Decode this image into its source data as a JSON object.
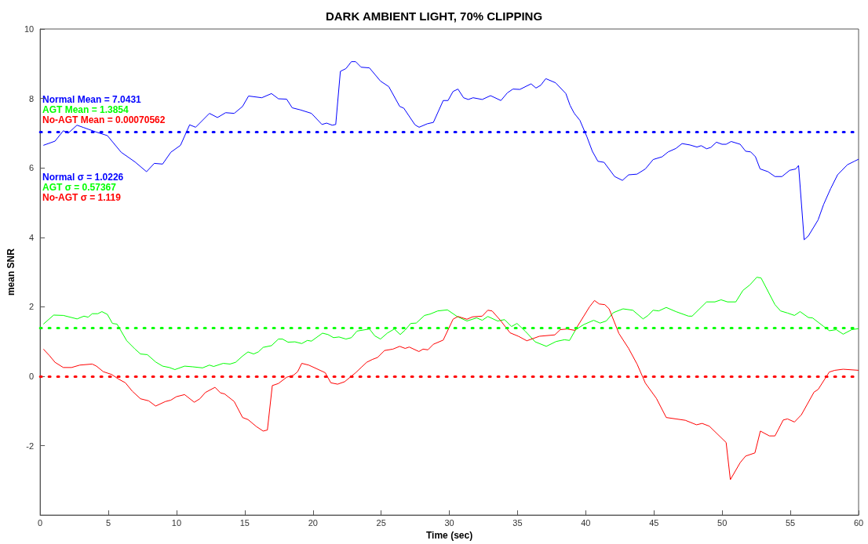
{
  "chart_data": {
    "type": "line",
    "title": "DARK AMBIENT LIGHT, 70% CLIPPING",
    "xlabel": "Time (sec)",
    "ylabel": "mean SNR",
    "xlim": [
      0,
      60
    ],
    "xticks": [
      0,
      5,
      10,
      15,
      20,
      25,
      30,
      35,
      40,
      45,
      50,
      55,
      60
    ],
    "ylim": [
      -4,
      10
    ],
    "yticks": [
      -2,
      0,
      2,
      4,
      6,
      8,
      10
    ],
    "grid": false,
    "marker": "none",
    "line_style": "solid",
    "annotations": [
      "Normal Mean = 7.0431",
      "AGT Mean = 1.3854",
      "No-AGT Mean = 0.00070562",
      "Normal σ = 1.0226",
      "AGT σ = 0.57367",
      "No-AGT σ = 1.119"
    ],
    "ref_lines": [
      {
        "axis": "y",
        "value": 7.0431,
        "color": "#0000ff",
        "line_style": "dotted"
      },
      {
        "axis": "y",
        "value": 1.3854,
        "color": "#00ff00",
        "line_style": "dotted"
      },
      {
        "axis": "y",
        "value": 0.00070562,
        "color": "#ff0000",
        "line_style": "dotted"
      }
    ],
    "series": [
      {
        "color": "#0000ff",
        "x": [
          0.24,
          1.09,
          1.7,
          2.06,
          2.7,
          3.2,
          4.13,
          4.93,
          5.94,
          6.96,
          7.8,
          8.37,
          8.98,
          9.58,
          10.29,
          10.96,
          11.4,
          12.41,
          13.0,
          13.6,
          14.23,
          14.84,
          15.28,
          16.25,
          16.96,
          17.47,
          18.07,
          18.48,
          19.08,
          19.89,
          20.66,
          21.0,
          21.41,
          21.67,
          22.01,
          22.42,
          22.82,
          23.13,
          23.53,
          24.14,
          24.95,
          25.56,
          26.36,
          26.66,
          27.48,
          27.78,
          28.38,
          28.83,
          29.55,
          29.9,
          30.27,
          30.63,
          31.04,
          31.39,
          31.74,
          32.41,
          33.02,
          33.78,
          34.25,
          34.66,
          35.17,
          35.99,
          36.35,
          36.7,
          37.07,
          37.79,
          38.54,
          38.85,
          39.16,
          39.57,
          40.08,
          40.48,
          40.89,
          41.34,
          42.12,
          42.69,
          43.14,
          43.76,
          44.37,
          44.94,
          45.6,
          46.04,
          46.61,
          47.06,
          47.64,
          48.15,
          48.46,
          48.86,
          49.17,
          49.58,
          49.99,
          50.29,
          50.66,
          51.32,
          51.72,
          52.09,
          52.44,
          52.78,
          53.36,
          53.87,
          54.38,
          54.95,
          55.4,
          55.6,
          56.01,
          56.32,
          57.03,
          57.44,
          57.95,
          58.46,
          59.18,
          59.69,
          60
        ],
        "values": [
          6.65,
          6.77,
          7.07,
          7.0,
          7.23,
          7.16,
          7.03,
          6.93,
          6.45,
          6.17,
          5.89,
          6.13,
          6.11,
          6.45,
          6.65,
          7.24,
          7.17,
          7.57,
          7.45,
          7.59,
          7.57,
          7.77,
          8.07,
          8.02,
          8.14,
          7.99,
          7.98,
          7.73,
          7.67,
          7.57,
          7.25,
          7.29,
          7.23,
          7.25,
          8.78,
          8.86,
          9.06,
          9.06,
          8.9,
          8.88,
          8.5,
          8.34,
          7.77,
          7.72,
          7.24,
          7.17,
          7.27,
          7.31,
          7.94,
          7.94,
          8.2,
          8.27,
          8.02,
          7.97,
          8.02,
          7.97,
          8.08,
          7.94,
          8.16,
          8.27,
          8.26,
          8.42,
          8.3,
          8.38,
          8.57,
          8.45,
          8.14,
          7.8,
          7.57,
          7.37,
          6.9,
          6.48,
          6.19,
          6.16,
          5.75,
          5.64,
          5.8,
          5.82,
          5.97,
          6.24,
          6.32,
          6.46,
          6.56,
          6.7,
          6.66,
          6.6,
          6.64,
          6.55,
          6.59,
          6.74,
          6.68,
          6.68,
          6.76,
          6.68,
          6.48,
          6.46,
          6.32,
          5.97,
          5.89,
          5.75,
          5.75,
          5.93,
          5.97,
          6.07,
          3.93,
          4.04,
          4.5,
          4.95,
          5.4,
          5.8,
          6.09,
          6.19,
          6.25
        ]
      },
      {
        "color": "#00ff00",
        "x": [
          0.24,
          0.99,
          1.7,
          2.71,
          3.21,
          3.52,
          3.82,
          4.23,
          4.53,
          4.93,
          5.3,
          5.64,
          6.35,
          6.96,
          7.36,
          7.86,
          8.47,
          8.98,
          9.48,
          9.88,
          10.59,
          11.2,
          11.91,
          12.41,
          12.72,
          13.42,
          13.92,
          14.33,
          14.84,
          15.24,
          15.65,
          16.0,
          16.35,
          16.96,
          17.47,
          17.77,
          18.17,
          18.68,
          19.18,
          19.59,
          19.89,
          20.7,
          21.1,
          21.51,
          21.91,
          22.42,
          22.82,
          23.23,
          24.14,
          24.54,
          24.95,
          25.45,
          25.96,
          26.4,
          26.76,
          27.17,
          27.57,
          28.18,
          28.59,
          29.15,
          29.86,
          30.57,
          31.29,
          32.0,
          32.41,
          32.82,
          33.54,
          34.05,
          34.56,
          34.96,
          35.58,
          36.29,
          37.11,
          37.83,
          38.44,
          38.81,
          39.26,
          39.87,
          40.58,
          41.05,
          41.5,
          42.02,
          42.73,
          43.45,
          44.2,
          44.57,
          44.94,
          45.35,
          45.9,
          46.61,
          47.53,
          47.8,
          48.86,
          49.47,
          49.92,
          50.39,
          51.0,
          51.52,
          52.03,
          52.54,
          52.85,
          53.87,
          54.28,
          54.79,
          55.3,
          55.71,
          56.32,
          56.62,
          57.45,
          57.86,
          58.37,
          58.87,
          59.49,
          60
        ],
        "values": [
          1.5,
          1.76,
          1.75,
          1.65,
          1.73,
          1.7,
          1.8,
          1.8,
          1.86,
          1.78,
          1.52,
          1.5,
          1.02,
          0.78,
          0.64,
          0.62,
          0.41,
          0.29,
          0.25,
          0.19,
          0.29,
          0.27,
          0.24,
          0.32,
          0.28,
          0.37,
          0.35,
          0.4,
          0.58,
          0.7,
          0.64,
          0.7,
          0.83,
          0.88,
          1.07,
          1.07,
          0.98,
          0.99,
          0.94,
          1.03,
          1.01,
          1.24,
          1.2,
          1.11,
          1.13,
          1.07,
          1.11,
          1.3,
          1.36,
          1.16,
          1.07,
          1.24,
          1.36,
          1.2,
          1.33,
          1.52,
          1.53,
          1.75,
          1.79,
          1.88,
          1.91,
          1.72,
          1.59,
          1.68,
          1.61,
          1.72,
          1.59,
          1.63,
          1.43,
          1.52,
          1.29,
          0.99,
          0.86,
          1.0,
          1.05,
          1.03,
          1.34,
          1.49,
          1.61,
          1.53,
          1.59,
          1.83,
          1.94,
          1.9,
          1.65,
          1.75,
          1.9,
          1.88,
          1.98,
          1.86,
          1.73,
          1.73,
          2.14,
          2.14,
          2.2,
          2.14,
          2.14,
          2.47,
          2.63,
          2.85,
          2.83,
          2.06,
          1.88,
          1.82,
          1.75,
          1.86,
          1.69,
          1.68,
          1.43,
          1.31,
          1.34,
          1.21,
          1.34,
          1.37
        ]
      },
      {
        "color": "#ff0000",
        "x": [
          0.24,
          0.69,
          1.09,
          1.7,
          2.3,
          2.91,
          3.82,
          4.13,
          4.63,
          5.24,
          5.74,
          6.25,
          6.75,
          7.36,
          7.96,
          8.47,
          9.18,
          9.58,
          9.99,
          10.59,
          11.3,
          11.71,
          12.11,
          12.82,
          13.22,
          13.52,
          14.23,
          14.84,
          15.24,
          15.85,
          16.35,
          16.66,
          17.02,
          17.47,
          18.07,
          18.58,
          18.88,
          19.18,
          19.69,
          20.3,
          20.9,
          21.31,
          21.81,
          22.32,
          22.72,
          23.13,
          23.53,
          23.94,
          24.34,
          24.74,
          25.25,
          25.86,
          26.36,
          26.76,
          27.06,
          27.77,
          28.07,
          28.43,
          28.83,
          29.55,
          30.27,
          30.63,
          31.29,
          31.7,
          32.41,
          32.82,
          33.13,
          33.74,
          34.45,
          35.06,
          35.68,
          36.6,
          37.73,
          38.13,
          38.64,
          39.21,
          40.28,
          40.64,
          40.99,
          41.4,
          41.71,
          42.43,
          43.14,
          43.76,
          44.37,
          45.18,
          45.9,
          46.6,
          47.3,
          48.12,
          48.53,
          49.06,
          50.29,
          50.6,
          51.32,
          51.72,
          52.4,
          52.8,
          53.46,
          53.87,
          54.48,
          54.79,
          55.3,
          55.81,
          56.73,
          57.04,
          57.85,
          58.26,
          58.87,
          60
        ],
        "values": [
          0.78,
          0.59,
          0.4,
          0.25,
          0.25,
          0.32,
          0.35,
          0.29,
          0.13,
          0.05,
          -0.08,
          -0.19,
          -0.43,
          -0.65,
          -0.71,
          -0.86,
          -0.73,
          -0.69,
          -0.59,
          -0.53,
          -0.75,
          -0.65,
          -0.47,
          -0.32,
          -0.48,
          -0.51,
          -0.73,
          -1.19,
          -1.25,
          -1.45,
          -1.58,
          -1.55,
          -0.27,
          -0.21,
          -0.03,
          0.03,
          0.13,
          0.37,
          0.32,
          0.21,
          0.1,
          -0.19,
          -0.23,
          -0.16,
          -0.03,
          0.1,
          0.25,
          0.4,
          0.48,
          0.54,
          0.74,
          0.78,
          0.86,
          0.8,
          0.84,
          0.71,
          0.78,
          0.76,
          0.92,
          1.04,
          1.64,
          1.72,
          1.64,
          1.71,
          1.73,
          1.9,
          1.88,
          1.61,
          1.25,
          1.15,
          1.02,
          1.15,
          1.19,
          1.34,
          1.36,
          1.32,
          2.0,
          2.18,
          2.08,
          2.06,
          1.94,
          1.23,
          0.8,
          0.35,
          -0.2,
          -0.64,
          -1.19,
          -1.23,
          -1.27,
          -1.4,
          -1.36,
          -1.44,
          -1.91,
          -2.98,
          -2.49,
          -2.3,
          -2.21,
          -1.58,
          -1.72,
          -1.72,
          -1.26,
          -1.23,
          -1.32,
          -1.11,
          -0.46,
          -0.38,
          0.12,
          0.17,
          0.2,
          0.17
        ]
      }
    ]
  }
}
